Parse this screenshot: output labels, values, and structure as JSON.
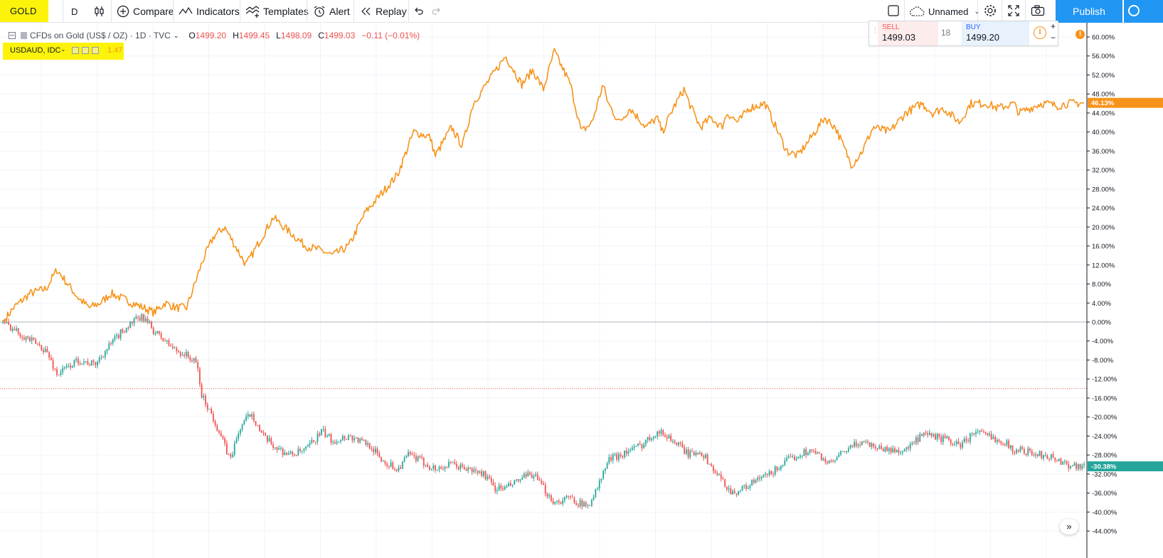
{
  "toolbar": {
    "symbol": "GOLD",
    "interval": "D",
    "compare_label": "Compare",
    "indicators_label": "Indicators",
    "templates_label": "Templates",
    "alert_label": "Alert",
    "replay_label": "Replay",
    "layout_name": "Unnamed",
    "publish_label": "Publish"
  },
  "legend": {
    "main_title": "CFDs on Gold (US$ / OZ) · 1D · TVC",
    "open_label": "O",
    "open": "1499.20",
    "high_label": "H",
    "high": "1499.45",
    "low_label": "L",
    "low": "1498.09",
    "close_label": "C",
    "close": "1499.03",
    "change": "−0.11 (−0.01%)",
    "compare_symbol": "USDAUD, IDC",
    "compare_value": "1.47"
  },
  "trade": {
    "sell_label": "SELL",
    "sell_price": "1499.03",
    "spread": "18",
    "buy_label": "BUY",
    "buy_price": "1499.20",
    "plus": "+",
    "minus": "−"
  },
  "colors": {
    "gold_line": "#f7931a",
    "up_candle": "#26a69a",
    "down_candle": "#ef5350",
    "publish_bg": "#2196f3",
    "highlight": "#fcf30a"
  },
  "chart_data": {
    "type": "line",
    "y_axis_format": "percent",
    "ylim": [
      -44,
      62
    ],
    "y_ticks": [
      60,
      56,
      52,
      48,
      44,
      40,
      36,
      32,
      28,
      24,
      20,
      16,
      12,
      8,
      4,
      0,
      -4,
      -8,
      -12,
      -16,
      -20,
      -24,
      -28,
      -32,
      -36,
      -40,
      -44
    ],
    "y_tick_labels": [
      "60.00%",
      "56.00%",
      "52.00%",
      "48.00%",
      "44.00%",
      "40.00%",
      "36.00%",
      "32.00%",
      "28.00%",
      "24.00%",
      "20.00%",
      "16.00%",
      "12.00%",
      "8.00%",
      "4.00%",
      "0.00%",
      "-4.00%",
      "-8.00%",
      "-12.00%",
      "-16.00%",
      "-20.00%",
      "-24.00%",
      "-28.00%",
      "-32.00%",
      "-36.00%",
      "-40.00%",
      "-44.00%"
    ],
    "x_range": [
      0,
      100
    ],
    "zero_line": 0,
    "reference_line": -14,
    "last_value_labels": [
      {
        "text": "46.13%",
        "value": 46.13,
        "series": 0
      },
      {
        "text": "-30.38%",
        "value": -30.38,
        "series": 1
      }
    ],
    "series": [
      {
        "style": "line",
        "x": [
          0,
          1,
          2.5,
          4,
          5,
          6,
          7,
          8,
          9,
          10,
          11,
          12,
          13,
          14,
          15,
          16,
          17,
          18.5,
          19.5,
          20.5,
          21.5,
          22.5,
          24,
          25,
          26.5,
          28,
          29.5,
          30.5,
          32,
          33.5,
          35,
          36.5,
          38,
          39.5,
          40,
          41.5,
          42.5,
          43.5,
          45,
          46.5,
          48,
          49,
          50,
          51,
          52.5,
          53.5,
          54.5,
          55.5,
          56,
          57,
          58,
          59.5,
          60.5,
          61,
          62,
          63,
          63.5,
          64.5,
          65.5,
          66.5,
          67,
          68,
          69,
          70.5,
          71.5,
          72.5,
          73.5,
          74.5,
          76,
          77,
          78.5,
          79.5,
          80.5,
          82,
          83.5,
          85,
          86,
          87,
          88.5,
          89.5,
          91,
          92,
          93.5,
          94,
          95,
          96,
          96.5,
          97.5,
          98.5,
          100
        ],
        "values": [
          0,
          3,
          6,
          7,
          11,
          8,
          5,
          3,
          4,
          6,
          5,
          4,
          3,
          2,
          4,
          3,
          3,
          13,
          18,
          20,
          16,
          12,
          18,
          22,
          19,
          16,
          15,
          14,
          16,
          23,
          27,
          31,
          40,
          39,
          35,
          41,
          37,
          46,
          51,
          56,
          50,
          53,
          49,
          57,
          50,
          40,
          42,
          50,
          46,
          42,
          45,
          41,
          43,
          40,
          45,
          49,
          46,
          41,
          43,
          41,
          44,
          42,
          45,
          46,
          41,
          36,
          35,
          38,
          43,
          41,
          33,
          36,
          41,
          40,
          44,
          46,
          44,
          45,
          42,
          46,
          46,
          45,
          46,
          44,
          45,
          46,
          46,
          45.5,
          46,
          46.13
        ]
      },
      {
        "style": "candles",
        "x": [
          0,
          2,
          4,
          5,
          7,
          8.5,
          9.5,
          11,
          12,
          13,
          14,
          15,
          16,
          17,
          18,
          18.3,
          19,
          20,
          21,
          22,
          23,
          24,
          25,
          26.5,
          28,
          29.5,
          30.5,
          32,
          33,
          34,
          35,
          36.5,
          37.5,
          38.5,
          40,
          41.5,
          43,
          44.5,
          45.5,
          46.5,
          48,
          49,
          50,
          51,
          52.5,
          54,
          55,
          56,
          57,
          58,
          59,
          60.5,
          61.5,
          62.5,
          63.5,
          64.5,
          66,
          67.5,
          68.5,
          70,
          71,
          72,
          73.5,
          74.5,
          75.5,
          76.5,
          78,
          79.5,
          80.5,
          82,
          83.5,
          85,
          86,
          87.5,
          88.5,
          90,
          91,
          92.5,
          93.5,
          94.5,
          95.5,
          96.5,
          97.5,
          98.5,
          100
        ],
        "values": [
          0,
          -3,
          -6,
          -11,
          -8,
          -9,
          -6,
          -2,
          0,
          1,
          -2,
          -4,
          -6,
          -7,
          -9,
          -15,
          -18,
          -23,
          -29,
          -22,
          -19,
          -24,
          -26,
          -28,
          -27,
          -23,
          -25,
          -24,
          -25,
          -26,
          -29,
          -31,
          -28,
          -29,
          -31,
          -30,
          -31,
          -32,
          -35,
          -35,
          -33,
          -32,
          -35,
          -38,
          -37,
          -39,
          -35,
          -29,
          -28,
          -27,
          -26,
          -23,
          -24,
          -26,
          -28,
          -27,
          -32,
          -36,
          -35,
          -33,
          -32,
          -30,
          -28,
          -27,
          -28,
          -30,
          -27,
          -25,
          -26,
          -27,
          -27,
          -24,
          -24,
          -25,
          -26,
          -23,
          -24,
          -25,
          -27,
          -27,
          -28,
          -28,
          -29,
          -30,
          -30.38
        ]
      }
    ]
  }
}
